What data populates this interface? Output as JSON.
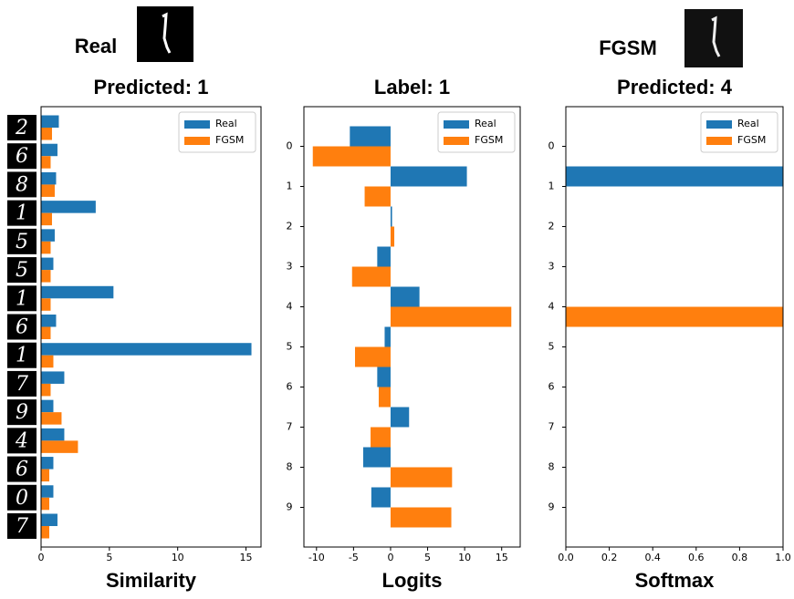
{
  "header": {
    "left": "Real",
    "right": "FGSM"
  },
  "chart_data": [
    {
      "type": "bar",
      "orientation": "horizontal",
      "title": "Predicted: 1",
      "x_label": "Similarity",
      "categories": [
        "2",
        "6",
        "8",
        "1",
        "5",
        "5",
        "1",
        "6",
        "1",
        "7",
        "9",
        "4",
        "6",
        "0",
        "7"
      ],
      "series": [
        {
          "name": "Real",
          "color": "#1f77b4",
          "values": [
            1.3,
            1.2,
            1.1,
            4.0,
            1.0,
            0.9,
            5.3,
            1.1,
            15.4,
            1.7,
            0.9,
            1.7,
            0.9,
            0.9,
            1.2
          ]
        },
        {
          "name": "FGSM",
          "color": "#ff7f0e",
          "values": [
            0.8,
            0.7,
            1.0,
            0.8,
            0.7,
            0.7,
            0.7,
            0.7,
            0.9,
            0.7,
            1.5,
            2.7,
            0.6,
            0.6,
            0.6
          ]
        }
      ],
      "xlim": [
        0,
        16.1
      ],
      "xticks": [
        0,
        5,
        10,
        15
      ],
      "legend": "upper right"
    },
    {
      "type": "bar",
      "orientation": "horizontal",
      "title": "Label: 1",
      "x_label": "Logits",
      "categories": [
        "0",
        "1",
        "2",
        "3",
        "4",
        "5",
        "6",
        "7",
        "8",
        "9"
      ],
      "series": [
        {
          "name": "Real",
          "color": "#1f77b4",
          "values": [
            -5.5,
            10.3,
            0.2,
            -1.8,
            3.9,
            -0.8,
            -1.8,
            2.5,
            -3.7,
            -2.6
          ]
        },
        {
          "name": "FGSM",
          "color": "#ff7f0e",
          "values": [
            -10.5,
            -3.5,
            0.5,
            -5.2,
            16.3,
            -4.8,
            -1.6,
            -2.7,
            8.3,
            8.2
          ]
        }
      ],
      "xlim": [
        -11.7,
        17.5
      ],
      "xticks": [
        -10,
        -5,
        0,
        5,
        10,
        15
      ],
      "legend": "upper right"
    },
    {
      "type": "bar",
      "orientation": "horizontal",
      "title": "Predicted: 4",
      "x_label": "Softmax",
      "categories": [
        "0",
        "1",
        "2",
        "3",
        "4",
        "5",
        "6",
        "7",
        "8",
        "9"
      ],
      "series": [
        {
          "name": "Real",
          "color": "#1f77b4",
          "values": [
            0,
            1.0,
            0,
            0,
            0,
            0,
            0,
            0,
            0,
            0
          ]
        },
        {
          "name": "FGSM",
          "color": "#ff7f0e",
          "values": [
            0,
            0,
            0,
            0,
            1.0,
            0,
            0,
            0,
            0,
            0
          ]
        }
      ],
      "xlim": [
        0,
        1
      ],
      "xticks": [
        {
          "value": 0,
          "label": "0.0"
        },
        0.2,
        0.4,
        0.6,
        0.8,
        {
          "value": 1,
          "label": "1.0"
        }
      ],
      "legend": "upper right"
    }
  ]
}
